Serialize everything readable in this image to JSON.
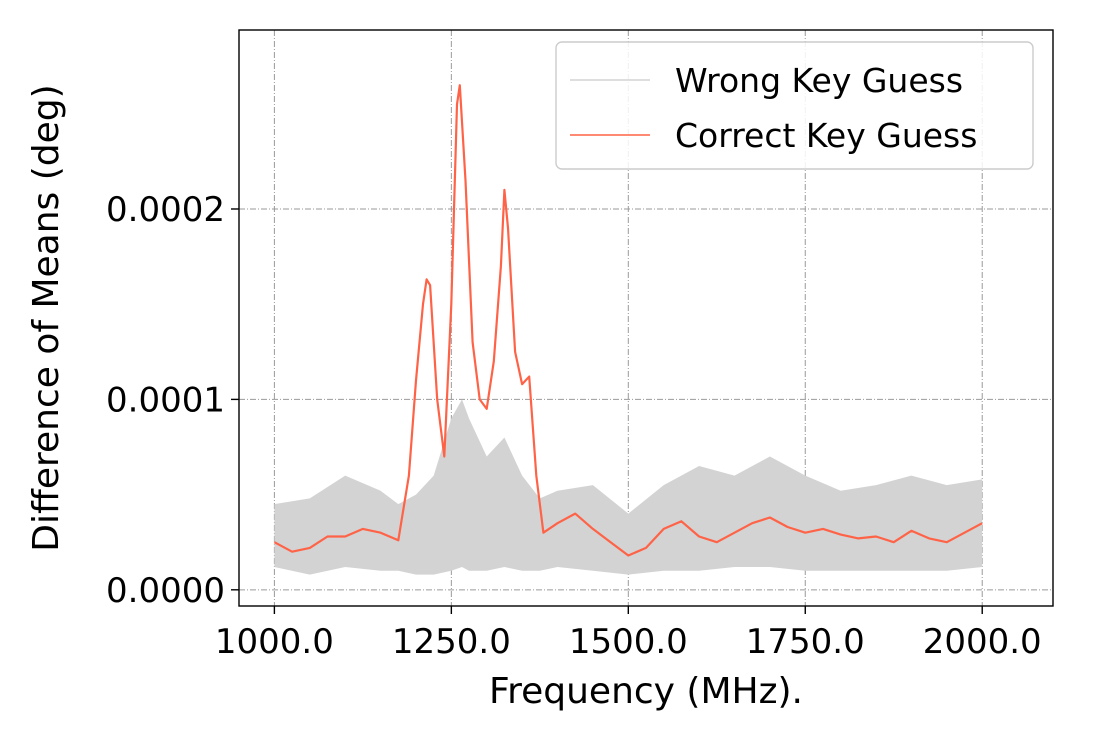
{
  "chart_data": {
    "type": "line",
    "title": "",
    "xlabel": "Frequency (MHz).",
    "ylabel": "Difference of Means (deg)",
    "xlim": [
      950,
      2100
    ],
    "ylim": [
      -8.5e-06,
      0.000294
    ],
    "x_ticks": [
      1000,
      1250,
      1500,
      1750,
      2000
    ],
    "x_tick_labels": [
      "1000.0",
      "1250.0",
      "1500.0",
      "1750.0",
      "2000.0"
    ],
    "y_ticks": [
      0.0,
      0.0001,
      0.0002
    ],
    "y_tick_labels": [
      "0.0000",
      "0.0001",
      "0.0002"
    ],
    "grid": true,
    "legend_position": "top-right",
    "series": [
      {
        "name": "Wrong Key Guess",
        "color": "#d3d3d3",
        "style": "band",
        "x": [
          1000,
          1050,
          1100,
          1150,
          1175,
          1200,
          1225,
          1250,
          1265,
          1275,
          1300,
          1325,
          1350,
          1375,
          1400,
          1450,
          1500,
          1550,
          1600,
          1650,
          1700,
          1750,
          1800,
          1850,
          1900,
          1950,
          2000
        ],
        "upper": [
          4.5e-05,
          4.8e-05,
          6e-05,
          5.2e-05,
          4.5e-05,
          5e-05,
          6e-05,
          9e-05,
          0.0001,
          9e-05,
          7e-05,
          8e-05,
          6e-05,
          4.8e-05,
          5.2e-05,
          5.5e-05,
          4e-05,
          5.5e-05,
          6.5e-05,
          6e-05,
          7e-05,
          6e-05,
          5.2e-05,
          5.5e-05,
          6e-05,
          5.5e-05,
          5.8e-05
        ],
        "lower": [
          1.2e-05,
          8e-06,
          1.2e-05,
          1e-05,
          1e-05,
          8e-06,
          8e-06,
          1e-05,
          1.2e-05,
          1e-05,
          1e-05,
          1.2e-05,
          1e-05,
          1e-05,
          1.2e-05,
          1e-05,
          8e-06,
          1e-05,
          1e-05,
          1.2e-05,
          1.2e-05,
          1e-05,
          1e-05,
          1e-05,
          1e-05,
          1e-05,
          1.2e-05
        ]
      },
      {
        "name": "Correct Key Guess",
        "color": "#ff6347",
        "style": "line",
        "x": [
          1000,
          1025,
          1050,
          1075,
          1100,
          1125,
          1150,
          1175,
          1190,
          1200,
          1210,
          1215,
          1220,
          1230,
          1240,
          1250,
          1258,
          1262,
          1270,
          1280,
          1290,
          1300,
          1310,
          1320,
          1325,
          1330,
          1340,
          1350,
          1360,
          1370,
          1380,
          1400,
          1425,
          1450,
          1475,
          1500,
          1525,
          1550,
          1575,
          1600,
          1625,
          1650,
          1675,
          1700,
          1725,
          1750,
          1775,
          1800,
          1825,
          1850,
          1875,
          1900,
          1925,
          1950,
          1975,
          2000
        ],
        "y": [
          2.5e-05,
          2e-05,
          2.2e-05,
          2.8e-05,
          2.8e-05,
          3.2e-05,
          3e-05,
          2.6e-05,
          6e-05,
          0.00011,
          0.00015,
          0.000163,
          0.00016,
          0.0001,
          7e-05,
          0.00015,
          0.000255,
          0.000265,
          0.000215,
          0.00013,
          0.0001,
          9.5e-05,
          0.00012,
          0.00017,
          0.00021,
          0.00019,
          0.000125,
          0.000108,
          0.000112,
          6e-05,
          3e-05,
          3.5e-05,
          4e-05,
          3.2e-05,
          2.5e-05,
          1.8e-05,
          2.2e-05,
          3.2e-05,
          3.6e-05,
          2.8e-05,
          2.5e-05,
          3e-05,
          3.5e-05,
          3.8e-05,
          3.3e-05,
          3e-05,
          3.2e-05,
          2.9e-05,
          2.7e-05,
          2.8e-05,
          2.5e-05,
          3.1e-05,
          2.7e-05,
          2.5e-05,
          3e-05,
          3.5e-05
        ]
      }
    ]
  }
}
